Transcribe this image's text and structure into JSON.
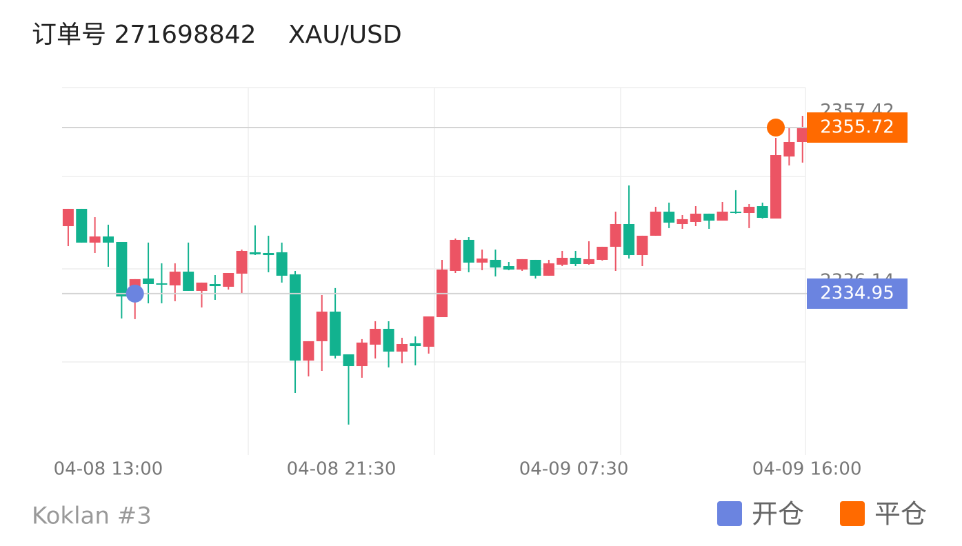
{
  "header": {
    "order": "订单号 271698842",
    "symbol": "XAU/USD"
  },
  "chart_data": {
    "type": "candlestick",
    "open": [
      2343.39,
      2345.55,
      2341.33,
      2342.1,
      2341.41,
      2334.77,
      2336.84,
      2336.24,
      2335.98,
      2337.7,
      2335.29,
      2336.15,
      2335.81,
      2337.45,
      2340.12,
      2340.03,
      2340.12,
      2337.36,
      2326.58,
      2329.0,
      2332.7,
      2327.36,
      2325.89,
      2328.57,
      2330.55,
      2327.7,
      2328.74,
      2328.31,
      2332.01,
      2337.79,
      2341.67,
      2338.83,
      2339.17,
      2338.39,
      2337.96,
      2339.17,
      2337.19,
      2338.57,
      2339.43,
      2338.65,
      2339.17,
      2340.81,
      2343.65,
      2339.77,
      2342.19,
      2345.2,
      2343.65,
      2343.91,
      2344.95,
      2344.08,
      2345.2,
      2345.03,
      2345.89,
      2344.34,
      2352.1,
      2353.91
    ],
    "high": [
      2345.55,
      2345.55,
      2344.51,
      2343.57,
      2341.41,
      2336.76,
      2341.33,
      2338.74,
      2338.74,
      2341.33,
      2336.33,
      2337.27,
      2337.53,
      2340.46,
      2343.48,
      2342.19,
      2341.33,
      2337.79,
      2329.0,
      2334.77,
      2335.64,
      2327.36,
      2329.26,
      2331.5,
      2331.5,
      2329.43,
      2329.6,
      2332.1,
      2339.17,
      2341.84,
      2342.01,
      2340.46,
      2340.46,
      2338.91,
      2339.26,
      2339.17,
      2339.17,
      2340.29,
      2340.29,
      2341.5,
      2340.81,
      2345.2,
      2348.48,
      2342.19,
      2345.81,
      2346.33,
      2344.77,
      2345.89,
      2344.95,
      2346.41,
      2347.88,
      2346.15,
      2346.33,
      2354.43,
      2355.72,
      2357.19
    ],
    "low": [
      2340.89,
      2341.33,
      2340.03,
      2338.31,
      2331.84,
      2331.76,
      2333.74,
      2333.74,
      2334.0,
      2335.29,
      2333.22,
      2334.17,
      2335.46,
      2335.03,
      2339.77,
      2337.62,
      2336.33,
      2322.53,
      2324.6,
      2325.29,
      2326.84,
      2318.57,
      2324.43,
      2326.84,
      2325.72,
      2326.24,
      2325.98,
      2327.45,
      2332.01,
      2337.53,
      2337.62,
      2337.88,
      2337.1,
      2337.88,
      2337.79,
      2336.84,
      2337.19,
      2338.39,
      2338.39,
      2338.57,
      2339.08,
      2337.79,
      2339.34,
      2338.39,
      2342.19,
      2343.14,
      2343.05,
      2343.39,
      2343.05,
      2344.08,
      2344.95,
      2343.14,
      2344.34,
      2344.34,
      2350.98,
      2351.33
    ],
    "close": [
      2345.55,
      2341.33,
      2342.1,
      2341.33,
      2334.6,
      2336.76,
      2336.15,
      2336.07,
      2337.7,
      2335.29,
      2336.33,
      2335.89,
      2337.53,
      2340.29,
      2339.86,
      2339.77,
      2337.19,
      2326.58,
      2329.0,
      2332.7,
      2327.19,
      2325.89,
      2328.83,
      2330.55,
      2327.7,
      2328.65,
      2328.39,
      2332.1,
      2337.96,
      2341.67,
      2338.83,
      2339.34,
      2338.22,
      2337.96,
      2339.26,
      2337.19,
      2338.74,
      2339.43,
      2338.65,
      2339.26,
      2340.81,
      2343.65,
      2339.77,
      2342.19,
      2345.2,
      2343.83,
      2344.26,
      2344.95,
      2344.08,
      2345.2,
      2345.03,
      2345.81,
      2344.43,
      2352.27,
      2353.91,
      2355.72
    ],
    "up_color": "#ec5464",
    "down_color": "#12b28f",
    "xlim": [
      -0.46,
      55.22
    ],
    "ylim": [
      2314.77,
      2360.72
    ],
    "xticks": [
      {
        "value": 3.0,
        "label": "04-08 13:00"
      },
      {
        "value": 20.46,
        "label": "04-08 21:30"
      },
      {
        "value": 37.87,
        "label": "04-09 07:30"
      },
      {
        "value": 55.33,
        "label": "04-09 16:00"
      }
    ],
    "yticks": [
      2357.42,
      2336.14
    ],
    "markers": [
      {
        "name": "开仓",
        "color": "#6b84e0",
        "x": 5,
        "value": 2334.95
      },
      {
        "name": "平仓",
        "color": "#ff6a00",
        "x": 53,
        "value": 2355.72
      }
    ]
  },
  "footer": {
    "source": "Koklan #3"
  }
}
